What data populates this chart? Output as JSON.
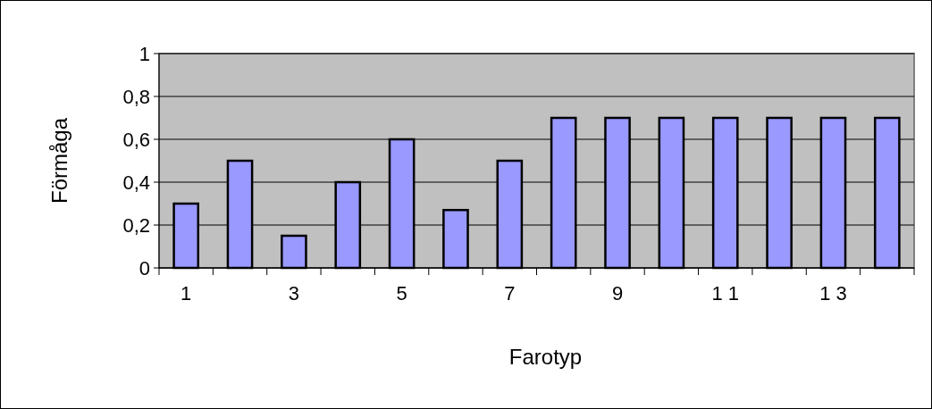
{
  "chart_data": {
    "type": "bar",
    "xlabel": "Farotyp",
    "ylabel": "Förmåga",
    "categories": [
      "1",
      null,
      "3",
      null,
      "5",
      null,
      "7",
      null,
      "9",
      null,
      "1 1",
      null,
      "1 3",
      null
    ],
    "values": [
      0.3,
      0.5,
      0.15,
      0.4,
      0.6,
      0.27,
      0.5,
      0.7,
      0.7,
      0.7,
      0.7,
      0.7,
      0.7,
      0.7
    ],
    "color": "#9999ff",
    "ylim": [
      0,
      1
    ],
    "yticks": [
      0,
      {
        "value": 0.2,
        "label": "0,2"
      },
      {
        "value": 0.4,
        "label": "0,4"
      },
      {
        "value": 0.6,
        "label": "0,6"
      },
      {
        "value": 0.8,
        "label": "0,8"
      },
      1
    ],
    "grid": "y"
  }
}
